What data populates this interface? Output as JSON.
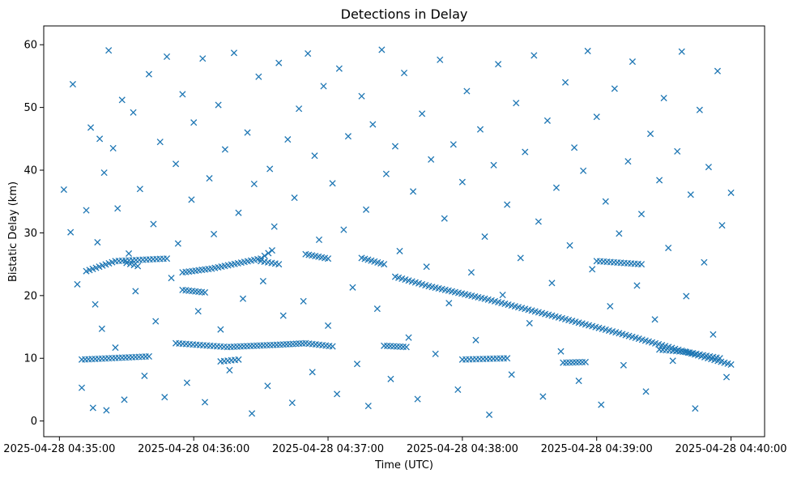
{
  "chart_data": {
    "type": "scatter",
    "title": "Detections in Delay",
    "xlabel": "Time (UTC)",
    "ylabel": "Bistatic Delay (km)",
    "x_ticks": [
      "2025-04-28 04:35:00",
      "2025-04-28 04:36:00",
      "2025-04-28 04:37:00",
      "2025-04-28 04:38:00",
      "2025-04-28 04:39:00",
      "2025-04-28 04:40:00"
    ],
    "y_ticks": [
      "0",
      "10",
      "20",
      "30",
      "40",
      "50",
      "60"
    ],
    "xlim": [
      "2025-04-28 04:34:53",
      "2025-04-28 04:40:15"
    ],
    "ylim": [
      -2.5,
      63
    ],
    "marker": "x",
    "grid": false,
    "colors": {
      "marker": "#1f77b4"
    },
    "tracks": [
      {
        "points": [
          [
            "2025-04-28 04:35:12",
            23.9
          ],
          [
            "2025-04-28 04:35:25",
            25.5
          ],
          [
            "2025-04-28 04:35:48",
            25.9
          ]
        ]
      },
      {
        "points": [
          [
            "2025-04-28 04:35:55",
            23.7
          ],
          [
            "2025-04-28 04:36:08",
            24.3
          ],
          [
            "2025-04-28 04:36:30",
            25.9
          ],
          [
            "2025-04-28 04:36:35",
            27.2
          ]
        ]
      },
      {
        "points": [
          [
            "2025-04-28 04:35:55",
            20.9
          ],
          [
            "2025-04-28 04:36:05",
            20.5
          ]
        ]
      },
      {
        "points": [
          [
            "2025-04-28 04:35:52",
            12.4
          ],
          [
            "2025-04-28 04:36:15",
            11.8
          ],
          [
            "2025-04-28 04:36:40",
            12.2
          ],
          [
            "2025-04-28 04:36:50",
            12.4
          ],
          [
            "2025-04-28 04:37:02",
            11.9
          ]
        ]
      },
      {
        "points": [
          [
            "2025-04-28 04:36:30",
            25.5
          ],
          [
            "2025-04-28 04:36:38",
            25.0
          ]
        ]
      },
      {
        "points": [
          [
            "2025-04-28 04:36:50",
            26.6
          ],
          [
            "2025-04-28 04:37:00",
            25.9
          ]
        ]
      },
      {
        "points": [
          [
            "2025-04-28 04:35:10",
            9.8
          ],
          [
            "2025-04-28 04:35:40",
            10.3
          ]
        ]
      },
      {
        "points": [
          [
            "2025-04-28 04:35:30",
            25.2
          ],
          [
            "2025-04-28 04:35:35",
            24.7
          ]
        ]
      },
      {
        "points": [
          [
            "2025-04-28 04:36:12",
            9.5
          ],
          [
            "2025-04-28 04:36:20",
            9.8
          ]
        ]
      },
      {
        "points": [
          [
            "2025-04-28 04:37:25",
            12.0
          ],
          [
            "2025-04-28 04:37:35",
            11.8
          ]
        ]
      },
      {
        "points": [
          [
            "2025-04-28 04:37:30",
            23.0
          ],
          [
            "2025-04-28 04:37:45",
            21.5
          ],
          [
            "2025-04-28 04:38:10",
            19.5
          ],
          [
            "2025-04-28 04:38:40",
            16.8
          ],
          [
            "2025-04-28 04:39:10",
            14.0
          ],
          [
            "2025-04-28 04:39:35",
            11.5
          ],
          [
            "2025-04-28 04:40:00",
            9.0
          ]
        ]
      },
      {
        "points": [
          [
            "2025-04-28 04:37:15",
            26.0
          ],
          [
            "2025-04-28 04:37:25",
            25.0
          ]
        ]
      },
      {
        "points": [
          [
            "2025-04-28 04:38:00",
            9.8
          ],
          [
            "2025-04-28 04:38:20",
            10.0
          ]
        ]
      },
      {
        "points": [
          [
            "2025-04-28 04:38:45",
            9.3
          ],
          [
            "2025-04-28 04:38:55",
            9.4
          ]
        ]
      },
      {
        "points": [
          [
            "2025-04-28 04:39:28",
            11.4
          ],
          [
            "2025-04-28 04:39:40",
            11.0
          ],
          [
            "2025-04-28 04:39:55",
            10.0
          ]
        ]
      },
      {
        "points": [
          [
            "2025-04-28 04:39:00",
            25.5
          ],
          [
            "2025-04-28 04:39:20",
            25.0
          ]
        ]
      }
    ],
    "scattered_points": [
      [
        "2025-04-28 04:35:02",
        36.9
      ],
      [
        "2025-04-28 04:35:05",
        30.1
      ],
      [
        "2025-04-28 04:35:06",
        53.7
      ],
      [
        "2025-04-28 04:35:08",
        21.8
      ],
      [
        "2025-04-28 04:35:10",
        5.3
      ],
      [
        "2025-04-28 04:35:12",
        33.6
      ],
      [
        "2025-04-28 04:35:14",
        46.8
      ],
      [
        "2025-04-28 04:35:15",
        2.1
      ],
      [
        "2025-04-28 04:35:16",
        18.6
      ],
      [
        "2025-04-28 04:35:17",
        28.5
      ],
      [
        "2025-04-28 04:35:18",
        45.0
      ],
      [
        "2025-04-28 04:35:19",
        14.7
      ],
      [
        "2025-04-28 04:35:20",
        39.6
      ],
      [
        "2025-04-28 04:35:21",
        1.7
      ],
      [
        "2025-04-28 04:35:22",
        59.1
      ],
      [
        "2025-04-28 04:35:24",
        43.5
      ],
      [
        "2025-04-28 04:35:25",
        11.7
      ],
      [
        "2025-04-28 04:35:26",
        33.9
      ],
      [
        "2025-04-28 04:35:28",
        51.2
      ],
      [
        "2025-04-28 04:35:29",
        3.4
      ],
      [
        "2025-04-28 04:35:31",
        26.7
      ],
      [
        "2025-04-28 04:35:33",
        49.2
      ],
      [
        "2025-04-28 04:35:34",
        20.7
      ],
      [
        "2025-04-28 04:35:36",
        37.0
      ],
      [
        "2025-04-28 04:35:38",
        7.2
      ],
      [
        "2025-04-28 04:35:40",
        55.3
      ],
      [
        "2025-04-28 04:35:42",
        31.4
      ],
      [
        "2025-04-28 04:35:43",
        15.9
      ],
      [
        "2025-04-28 04:35:45",
        44.5
      ],
      [
        "2025-04-28 04:35:47",
        3.8
      ],
      [
        "2025-04-28 04:35:48",
        58.1
      ],
      [
        "2025-04-28 04:35:50",
        22.8
      ],
      [
        "2025-04-28 04:35:52",
        41.0
      ],
      [
        "2025-04-28 04:35:53",
        28.3
      ],
      [
        "2025-04-28 04:35:55",
        52.1
      ],
      [
        "2025-04-28 04:35:57",
        6.1
      ],
      [
        "2025-04-28 04:35:59",
        35.3
      ],
      [
        "2025-04-28 04:36:00",
        47.6
      ],
      [
        "2025-04-28 04:36:02",
        17.5
      ],
      [
        "2025-04-28 04:36:04",
        57.8
      ],
      [
        "2025-04-28 04:36:05",
        3.0
      ],
      [
        "2025-04-28 04:36:07",
        38.7
      ],
      [
        "2025-04-28 04:36:09",
        29.8
      ],
      [
        "2025-04-28 04:36:11",
        50.4
      ],
      [
        "2025-04-28 04:36:12",
        14.6
      ],
      [
        "2025-04-28 04:36:14",
        43.3
      ],
      [
        "2025-04-28 04:36:16",
        8.1
      ],
      [
        "2025-04-28 04:36:18",
        58.7
      ],
      [
        "2025-04-28 04:36:20",
        33.2
      ],
      [
        "2025-04-28 04:36:22",
        19.5
      ],
      [
        "2025-04-28 04:36:24",
        46.0
      ],
      [
        "2025-04-28 04:36:26",
        1.2
      ],
      [
        "2025-04-28 04:36:27",
        37.8
      ],
      [
        "2025-04-28 04:36:29",
        54.9
      ],
      [
        "2025-04-28 04:36:31",
        22.3
      ],
      [
        "2025-04-28 04:36:33",
        5.6
      ],
      [
        "2025-04-28 04:36:34",
        40.2
      ],
      [
        "2025-04-28 04:36:36",
        31.0
      ],
      [
        "2025-04-28 04:36:38",
        57.1
      ],
      [
        "2025-04-28 04:36:40",
        16.8
      ],
      [
        "2025-04-28 04:36:42",
        44.9
      ],
      [
        "2025-04-28 04:36:44",
        2.9
      ],
      [
        "2025-04-28 04:36:45",
        35.6
      ],
      [
        "2025-04-28 04:36:47",
        49.8
      ],
      [
        "2025-04-28 04:36:49",
        19.1
      ],
      [
        "2025-04-28 04:36:51",
        58.6
      ],
      [
        "2025-04-28 04:36:53",
        7.8
      ],
      [
        "2025-04-28 04:36:54",
        42.3
      ],
      [
        "2025-04-28 04:36:56",
        28.9
      ],
      [
        "2025-04-28 04:36:58",
        53.4
      ],
      [
        "2025-04-28 04:37:00",
        15.2
      ],
      [
        "2025-04-28 04:37:02",
        37.9
      ],
      [
        "2025-04-28 04:37:04",
        4.3
      ],
      [
        "2025-04-28 04:37:05",
        56.2
      ],
      [
        "2025-04-28 04:37:07",
        30.5
      ],
      [
        "2025-04-28 04:37:09",
        45.4
      ],
      [
        "2025-04-28 04:37:11",
        21.3
      ],
      [
        "2025-04-28 04:37:13",
        9.1
      ],
      [
        "2025-04-28 04:37:15",
        51.8
      ],
      [
        "2025-04-28 04:37:17",
        33.7
      ],
      [
        "2025-04-28 04:37:18",
        2.4
      ],
      [
        "2025-04-28 04:37:20",
        47.3
      ],
      [
        "2025-04-28 04:37:22",
        17.9
      ],
      [
        "2025-04-28 04:37:24",
        59.2
      ],
      [
        "2025-04-28 04:37:26",
        39.4
      ],
      [
        "2025-04-28 04:37:28",
        6.7
      ],
      [
        "2025-04-28 04:37:30",
        43.8
      ],
      [
        "2025-04-28 04:37:32",
        27.1
      ],
      [
        "2025-04-28 04:37:34",
        55.5
      ],
      [
        "2025-04-28 04:37:36",
        13.3
      ],
      [
        "2025-04-28 04:37:38",
        36.6
      ],
      [
        "2025-04-28 04:37:40",
        3.5
      ],
      [
        "2025-04-28 04:37:42",
        49.0
      ],
      [
        "2025-04-28 04:37:44",
        24.6
      ],
      [
        "2025-04-28 04:37:46",
        41.7
      ],
      [
        "2025-04-28 04:37:48",
        10.7
      ],
      [
        "2025-04-28 04:37:50",
        57.6
      ],
      [
        "2025-04-28 04:37:52",
        32.3
      ],
      [
        "2025-04-28 04:37:54",
        18.8
      ],
      [
        "2025-04-28 04:37:56",
        44.1
      ],
      [
        "2025-04-28 04:37:58",
        5.0
      ],
      [
        "2025-04-28 04:38:00",
        38.1
      ],
      [
        "2025-04-28 04:38:02",
        52.6
      ],
      [
        "2025-04-28 04:38:04",
        23.7
      ],
      [
        "2025-04-28 04:38:06",
        12.9
      ],
      [
        "2025-04-28 04:38:08",
        46.5
      ],
      [
        "2025-04-28 04:38:10",
        29.4
      ],
      [
        "2025-04-28 04:38:12",
        1.0
      ],
      [
        "2025-04-28 04:38:14",
        40.8
      ],
      [
        "2025-04-28 04:38:16",
        56.9
      ],
      [
        "2025-04-28 04:38:18",
        20.1
      ],
      [
        "2025-04-28 04:38:20",
        34.5
      ],
      [
        "2025-04-28 04:38:22",
        7.4
      ],
      [
        "2025-04-28 04:38:24",
        50.7
      ],
      [
        "2025-04-28 04:38:26",
        26.0
      ],
      [
        "2025-04-28 04:38:28",
        42.9
      ],
      [
        "2025-04-28 04:38:30",
        15.6
      ],
      [
        "2025-04-28 04:38:32",
        58.3
      ],
      [
        "2025-04-28 04:38:34",
        31.8
      ],
      [
        "2025-04-28 04:38:36",
        3.9
      ],
      [
        "2025-04-28 04:38:38",
        47.9
      ],
      [
        "2025-04-28 04:38:40",
        22.0
      ],
      [
        "2025-04-28 04:38:42",
        37.2
      ],
      [
        "2025-04-28 04:38:44",
        11.1
      ],
      [
        "2025-04-28 04:38:46",
        54.0
      ],
      [
        "2025-04-28 04:38:48",
        28.0
      ],
      [
        "2025-04-28 04:38:50",
        43.6
      ],
      [
        "2025-04-28 04:38:52",
        6.4
      ],
      [
        "2025-04-28 04:38:54",
        39.9
      ],
      [
        "2025-04-28 04:38:56",
        59.0
      ],
      [
        "2025-04-28 04:38:58",
        24.2
      ],
      [
        "2025-04-28 04:39:00",
        48.5
      ],
      [
        "2025-04-28 04:39:02",
        2.6
      ],
      [
        "2025-04-28 04:39:04",
        35.0
      ],
      [
        "2025-04-28 04:39:06",
        18.3
      ],
      [
        "2025-04-28 04:39:08",
        53.0
      ],
      [
        "2025-04-28 04:39:10",
        29.9
      ],
      [
        "2025-04-28 04:39:12",
        8.9
      ],
      [
        "2025-04-28 04:39:14",
        41.4
      ],
      [
        "2025-04-28 04:39:16",
        57.3
      ],
      [
        "2025-04-28 04:39:18",
        21.6
      ],
      [
        "2025-04-28 04:39:20",
        33.0
      ],
      [
        "2025-04-28 04:39:22",
        4.7
      ],
      [
        "2025-04-28 04:39:24",
        45.8
      ],
      [
        "2025-04-28 04:39:26",
        16.2
      ],
      [
        "2025-04-28 04:39:28",
        38.4
      ],
      [
        "2025-04-28 04:39:30",
        51.5
      ],
      [
        "2025-04-28 04:39:32",
        27.6
      ],
      [
        "2025-04-28 04:39:34",
        9.6
      ],
      [
        "2025-04-28 04:39:36",
        43.0
      ],
      [
        "2025-04-28 04:39:38",
        58.9
      ],
      [
        "2025-04-28 04:39:40",
        19.9
      ],
      [
        "2025-04-28 04:39:42",
        36.1
      ],
      [
        "2025-04-28 04:39:44",
        2.0
      ],
      [
        "2025-04-28 04:39:46",
        49.6
      ],
      [
        "2025-04-28 04:39:48",
        25.3
      ],
      [
        "2025-04-28 04:39:50",
        40.5
      ],
      [
        "2025-04-28 04:39:52",
        13.8
      ],
      [
        "2025-04-28 04:39:54",
        55.8
      ],
      [
        "2025-04-28 04:39:56",
        31.2
      ],
      [
        "2025-04-28 04:39:58",
        7.0
      ],
      [
        "2025-04-28 04:40:00",
        36.4
      ]
    ]
  }
}
